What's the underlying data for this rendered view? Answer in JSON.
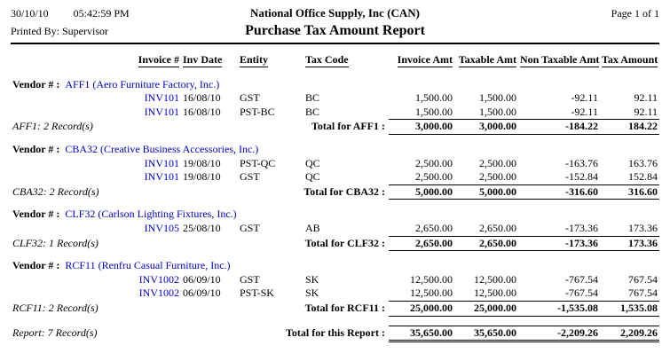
{
  "header": {
    "date": "30/10/10",
    "time": "05:42:59 PM",
    "company": "National Office Supply, Inc (CAN)",
    "page_label": "Page 1 of 1",
    "printed_by": "Printed By: Supervisor",
    "title": "Purchase Tax Amount Report"
  },
  "labels": {
    "vendor_number": "Vendor # :"
  },
  "columns": [
    "Invoice #",
    "Inv Date",
    "Entity",
    "Tax Code",
    "Invoice Amt",
    "Taxable Amt",
    "Non Taxable Amt",
    "Tax Amount"
  ],
  "vendors": [
    {
      "code": "AFF1",
      "name": "AFF1 (Aero Furniture Factory, Inc.)",
      "rows": [
        {
          "invoice": "INV101",
          "date": "16/08/10",
          "entity": "GST",
          "tax_code": "BC",
          "invoice_amt": "1,500.00",
          "taxable_amt": "1,500.00",
          "non_taxable_amt": "-92.11",
          "tax_amount": "92.11"
        },
        {
          "invoice": "INV101",
          "date": "16/08/10",
          "entity": "PST-BC",
          "tax_code": "BC",
          "invoice_amt": "1,500.00",
          "taxable_amt": "1,500.00",
          "non_taxable_amt": "-92.11",
          "tax_amount": "92.11"
        }
      ],
      "record_label": "AFF1: 2 Record(s)",
      "total_label": "Total for AFF1 :",
      "totals": {
        "invoice_amt": "3,000.00",
        "taxable_amt": "3,000.00",
        "non_taxable_amt": "-184.22",
        "tax_amount": "184.22"
      }
    },
    {
      "code": "CBA32",
      "name": "CBA32 (Creative Business Accessories, Inc.)",
      "rows": [
        {
          "invoice": "INV101",
          "date": "19/08/10",
          "entity": "PST-QC",
          "tax_code": "QC",
          "invoice_amt": "2,500.00",
          "taxable_amt": "2,500.00",
          "non_taxable_amt": "-163.76",
          "tax_amount": "163.76"
        },
        {
          "invoice": "INV101",
          "date": "19/08/10",
          "entity": "GST",
          "tax_code": "QC",
          "invoice_amt": "2,500.00",
          "taxable_amt": "2,500.00",
          "non_taxable_amt": "-152.84",
          "tax_amount": "152.84"
        }
      ],
      "record_label": "CBA32: 2 Record(s)",
      "total_label": "Total for CBA32 :",
      "totals": {
        "invoice_amt": "5,000.00",
        "taxable_amt": "5,000.00",
        "non_taxable_amt": "-316.60",
        "tax_amount": "316.60"
      }
    },
    {
      "code": "CLF32",
      "name": "CLF32 (Carlson Lighting Fixtures, Inc.)",
      "rows": [
        {
          "invoice": "INV105",
          "date": "25/08/10",
          "entity": "GST",
          "tax_code": "AB",
          "invoice_amt": "2,650.00",
          "taxable_amt": "2,650.00",
          "non_taxable_amt": "-173.36",
          "tax_amount": "173.36"
        }
      ],
      "record_label": "CLF32: 1 Record(s)",
      "total_label": "Total for CLF32 :",
      "totals": {
        "invoice_amt": "2,650.00",
        "taxable_amt": "2,650.00",
        "non_taxable_amt": "-173.36",
        "tax_amount": "173.36"
      }
    },
    {
      "code": "RCF11",
      "name": "RCF11 (Renfru Casual Furniture, Inc.)",
      "rows": [
        {
          "invoice": "INV1002",
          "date": "06/09/10",
          "entity": "GST",
          "tax_code": "SK",
          "invoice_amt": "12,500.00",
          "taxable_amt": "12,500.00",
          "non_taxable_amt": "-767.54",
          "tax_amount": "767.54"
        },
        {
          "invoice": "INV1002",
          "date": "06/09/10",
          "entity": "PST-SK",
          "tax_code": "SK",
          "invoice_amt": "12,500.00",
          "taxable_amt": "12,500.00",
          "non_taxable_amt": "-767.54",
          "tax_amount": "767.54"
        }
      ],
      "record_label": "RCF11: 2 Record(s)",
      "total_label": "Total for RCF11 :",
      "totals": {
        "invoice_amt": "25,000.00",
        "taxable_amt": "25,000.00",
        "non_taxable_amt": "-1,535.08",
        "tax_amount": "1,535.08"
      }
    }
  ],
  "report": {
    "record_label": "Report: 7 Record(s)",
    "total_label": "Total for this Report :",
    "totals": {
      "invoice_amt": "35,650.00",
      "taxable_amt": "35,650.00",
      "non_taxable_amt": "-2,209.26",
      "tax_amount": "2,209.26"
    }
  },
  "colors": {
    "link": "#0000c8"
  }
}
